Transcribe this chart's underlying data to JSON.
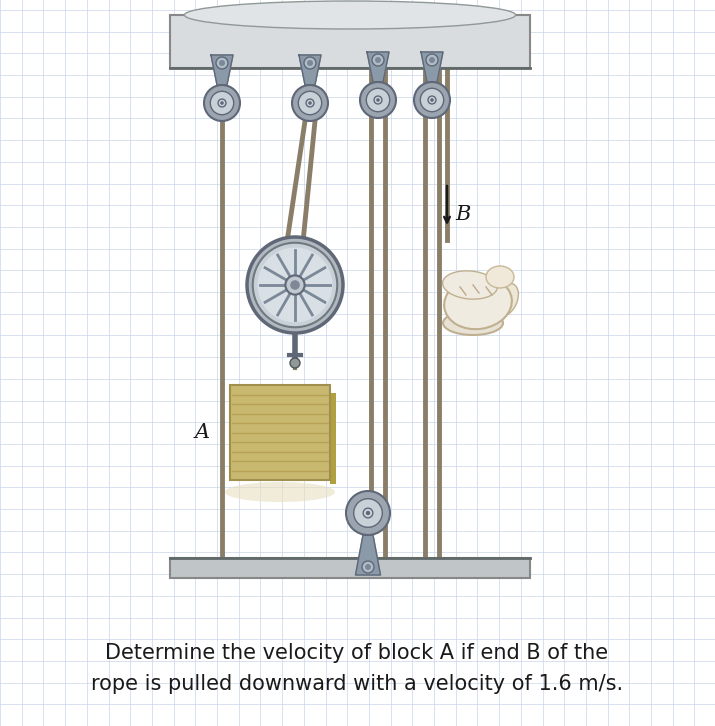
{
  "bg_color": "#ffffff",
  "grid_color": "#c8d4e8",
  "text_line1": "Determine the velocity of block A if end B of the",
  "text_line2": "rope is pulled downward with a velocity of 1.6 m/s.",
  "text_fontsize": 15.0,
  "text_color": "#1a1a1a",
  "label_A": "A",
  "label_B": "B",
  "label_fontsize": 15,
  "fig_width": 7.15,
  "fig_height": 7.26,
  "rope_color": "#8a7e68",
  "block_color": "#c8b870",
  "block_stripe_color": "#b8a055",
  "block_shadow_color": "#e8dfa8",
  "arrow_color": "#1a1a1a",
  "ceiling_color": "#c8cdd0",
  "ceiling_edge": "#888888",
  "floor_color": "#c0c5c8",
  "floor_edge": "#888888",
  "pulley_outer": "#9aa5b0",
  "pulley_inner": "#c8d0d8",
  "pulley_spoke": "#7a8590",
  "pulley_hub": "#dde3e8",
  "bracket_color": "#8a9aa8",
  "bracket_edge": "#606878",
  "small_pulley_r": 18,
  "big_pulley_r": 48,
  "bot_pulley_r": 22,
  "hand_color": "#f0ebe0",
  "hand_edge": "#c0b090"
}
